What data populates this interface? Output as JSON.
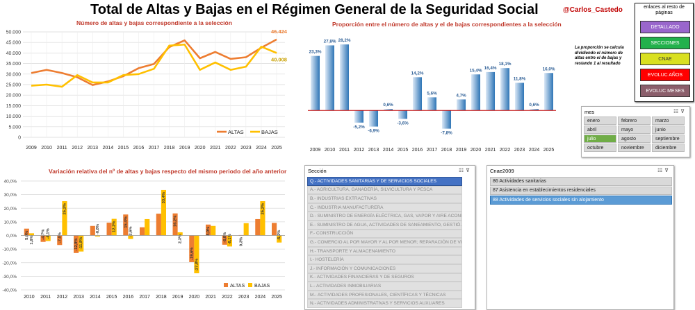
{
  "title": "Total de Altas y Bajas en el Régimen General de la Seguridad Social",
  "handle": "@Carlos_Castedo",
  "nav": {
    "header": "enlaces al resto de páginas",
    "buttons": [
      {
        "label": "DETALLADO",
        "color": "#9966cc"
      },
      {
        "label": "SECCIONES",
        "color": "#22b14c"
      },
      {
        "label": "CNAE",
        "color": "#d9e021"
      },
      {
        "label": "EVOLUC AÑOS",
        "color": "#ff0000"
      },
      {
        "label": "EVOLUC MESES",
        "color": "#8b5e6b"
      }
    ]
  },
  "note": "La proporción se calcula dividiendo el número de altas entre el de bajas y restando 1 al resultado",
  "colors": {
    "altas": "#ed7d31",
    "bajas": "#ffc000",
    "bar_blue": "#2e75b6"
  },
  "chart_data": [
    {
      "type": "line",
      "title": "Número de altas y bajas correspondiente a la selección",
      "x": [
        "2009",
        "2010",
        "2011",
        "2012",
        "2013",
        "2014",
        "2015",
        "2016",
        "2017",
        "2018",
        "2019",
        "2020",
        "2021",
        "2022",
        "2023",
        "2024",
        "2025"
      ],
      "series": [
        {
          "name": "ALTAS",
          "values": [
            30500,
            32000,
            30500,
            28500,
            24800,
            26500,
            29000,
            32800,
            34800,
            42800,
            46000,
            37500,
            40500,
            37200,
            38000,
            42500,
            46424
          ]
        },
        {
          "name": "BAJAS",
          "values": [
            24500,
            25000,
            24000,
            29500,
            26000,
            26000,
            29500,
            30000,
            32500,
            43500,
            44000,
            32000,
            35500,
            32000,
            33500,
            43000,
            40008
          ]
        }
      ],
      "data_labels": [
        "46.424",
        "40.008"
      ],
      "ylim": [
        0,
        50000
      ],
      "yticks": [
        "0",
        "5.000",
        "10.000",
        "15.000",
        "20.000",
        "25.000",
        "30.000",
        "35.000",
        "40.000",
        "45.000",
        "50.000"
      ],
      "grid": true,
      "legend": "bottom-right"
    },
    {
      "type": "bar",
      "title": "Proporción entre el número de altas y el de bajas correspondientes a la selección",
      "categories": [
        "2009",
        "2010",
        "2011",
        "2012",
        "2013",
        "2014",
        "2015",
        "2016",
        "2017",
        "2018",
        "2019",
        "2020",
        "2021",
        "2022",
        "2023",
        "2024",
        "2025"
      ],
      "values": [
        23.3,
        27.8,
        28.2,
        -5.2,
        -6.9,
        0.6,
        -3.6,
        14.2,
        5.6,
        -7.8,
        4.7,
        15.4,
        16.4,
        18.1,
        11.8,
        0.6,
        16.0
      ],
      "labels": [
        "23,3%",
        "27,8%",
        "28,2%",
        "-5,2%",
        "-6,9%",
        "0,6%",
        "-3,6%",
        "14,2%",
        "5,6%",
        "-7,8%",
        "4,7%",
        "15,4%",
        "16,4%",
        "18,1%",
        "11,8%",
        "0,6%",
        "16,0%"
      ],
      "ylim": [
        -10,
        30
      ],
      "grid": false
    },
    {
      "type": "bar",
      "title": "Variación relativa del nº de altas y bajas respecto del mismo periodo del año anterior",
      "categories": [
        "2010",
        "2011",
        "2012",
        "2013",
        "2014",
        "2015",
        "2016",
        "2017",
        "2018",
        "2019",
        "2020",
        "2021",
        "2022",
        "2023",
        "2024",
        "2025"
      ],
      "series": [
        {
          "name": "ALTAS",
          "values": [
            5.0,
            -4.7,
            -7.0,
            -12.9,
            7.0,
            9.4,
            15.4,
            6.0,
            16.0,
            16.2,
            -19.6,
            8.0,
            -6.8,
            0.3,
            12.0,
            9.2
          ],
          "labels": [
            "5,0%",
            "-4,7%",
            "-7,0%",
            "-12,9%",
            "",
            "",
            "15,4%",
            "",
            "",
            "16,2%",
            "-19,6%",
            "8,0%",
            "-6,8%",
            "0,3%",
            "",
            ""
          ]
        },
        {
          "name": "BAJAS",
          "values": [
            1.6,
            -4.1,
            25.2,
            -11.8,
            -0.8,
            12.2,
            -2.6,
            12.0,
            33.4,
            2.3,
            -27.8,
            7.0,
            -8.1,
            9.0,
            25.2,
            -5.2
          ],
          "labels": [
            "1,6%",
            "-4,1%",
            "25,2%",
            "-11,8%",
            "-0,8%",
            "12,2%",
            "-2,6%",
            "",
            "33,4%",
            "2,3%",
            "-27,8%",
            "",
            "-8,1%",
            "",
            "25,2%",
            "-5,2%"
          ]
        }
      ],
      "ylim": [
        -40,
        40
      ],
      "yticks": [
        "-40,0%",
        "-30,0%",
        "-20,0%",
        "-10,0%",
        "0,0%",
        "10,0%",
        "20,0%",
        "30,0%",
        "40,0%"
      ],
      "grid": true,
      "legend": "bottom-right"
    }
  ],
  "slicer_mes": {
    "title": "mes",
    "items": [
      {
        "label": "enero",
        "selected": false
      },
      {
        "label": "febrero",
        "selected": false
      },
      {
        "label": "marzo",
        "selected": false
      },
      {
        "label": "abril",
        "selected": false
      },
      {
        "label": "mayo",
        "selected": false
      },
      {
        "label": "junio",
        "selected": false
      },
      {
        "label": "julio",
        "selected": true
      },
      {
        "label": "agosto",
        "selected": false
      },
      {
        "label": "septiembre",
        "selected": false
      },
      {
        "label": "octubre",
        "selected": false
      },
      {
        "label": "noviembre",
        "selected": false
      },
      {
        "label": "diciembre",
        "selected": false
      }
    ]
  },
  "slicer_seccion": {
    "title": "Sección",
    "items": [
      {
        "label": "Q.- ACTIVIDADES SANITARIAS Y DE SERVICIOS SOCIALES",
        "selected": true
      },
      {
        "label": "A.- AGRICULTURA, GANADERÍA, SILVICULTURA Y PESCA",
        "selected": false
      },
      {
        "label": "B.- INDUSTRIAS EXTRACTIVAS",
        "selected": false
      },
      {
        "label": "C.- INDUSTRIA MANUFACTURERA",
        "selected": false
      },
      {
        "label": "D.- SUMINISTRO DE ENERGÍA ELÉCTRICA, GAS, VAPOR Y AIRE ACOND...",
        "selected": false
      },
      {
        "label": "E.- SUMINISTRO DE AGUA, ACTIVIDADES DE SANEAMIENTO, GESTIÓ...",
        "selected": false
      },
      {
        "label": "F.- CONSTRUCCIÓN",
        "selected": false
      },
      {
        "label": "G.- COMERCIO AL POR MAYOR Y AL POR MENOR; REPARACIÓN DE VE...",
        "selected": false
      },
      {
        "label": "H.- TRANSPORTE Y ALMACENAMIENTO",
        "selected": false
      },
      {
        "label": "I.- HOSTELERÍA",
        "selected": false
      },
      {
        "label": "J.- INFORMACIÓN Y COMUNICACIONES",
        "selected": false
      },
      {
        "label": "K.- ACTIVIDADES FINANCIERAS Y DE SEGUROS",
        "selected": false
      },
      {
        "label": "L.- ACTIVIDADES INMOBILIARIAS",
        "selected": false
      },
      {
        "label": "M.- ACTIVIDADES PROFESIONALES, CIENTÍFICAS Y TÉCNICAS",
        "selected": false
      },
      {
        "label": "N.- ACTIVIDADES ADMINISTRATIVAS Y SERVICIOS AUXLIARES",
        "selected": false
      }
    ]
  },
  "slicer_cnae": {
    "title": "Cnae2009",
    "items": [
      {
        "label": "86 Actividades sanitarias",
        "selected": false
      },
      {
        "label": "87 Asistencia en establecimientos residenciales",
        "selected": false
      },
      {
        "label": "88 Actividades de servicios sociales sin alojamiento",
        "selected": true
      }
    ]
  }
}
